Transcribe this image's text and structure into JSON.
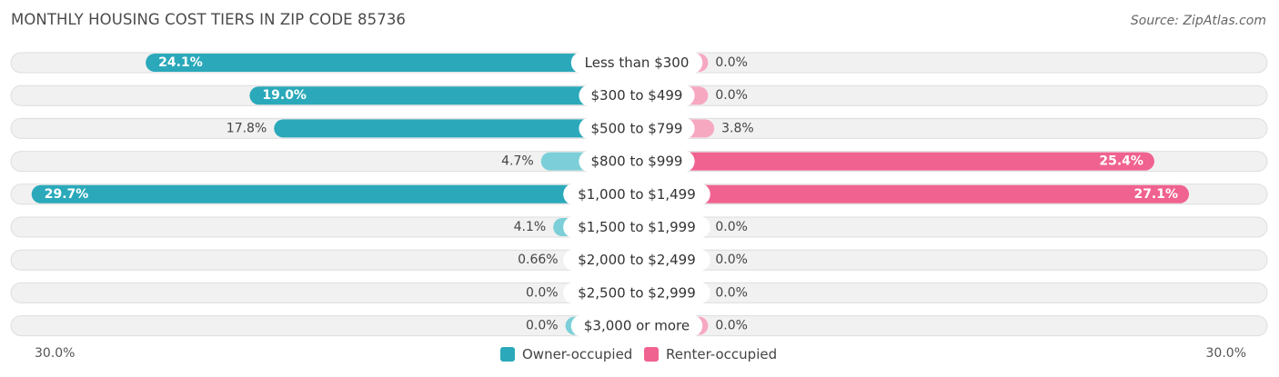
{
  "title": "MONTHLY HOUSING COST TIERS IN ZIP CODE 85736",
  "source": "Source: ZipAtlas.com",
  "axis": {
    "left_label": "30.0%",
    "right_label": "30.0%"
  },
  "legend": {
    "owner": {
      "label": "Owner-occupied",
      "color": "#2ba9ba"
    },
    "renter": {
      "label": "Renter-occupied",
      "color": "#f0628f"
    }
  },
  "chart_data": {
    "type": "bar",
    "orientation": "diverging-horizontal",
    "max": 30.0,
    "categories": [
      "Less than $300",
      "$300 to $499",
      "$500 to $799",
      "$800 to $999",
      "$1,000 to $1,499",
      "$1,500 to $1,999",
      "$2,000 to $2,499",
      "$2,500 to $2,999",
      "$3,000 or more"
    ],
    "series": [
      {
        "name": "Owner-occupied",
        "values": [
          24.1,
          19.0,
          17.8,
          4.7,
          29.7,
          4.1,
          0.66,
          0.0,
          0.0
        ],
        "labels": [
          "24.1%",
          "19.0%",
          "17.8%",
          "4.7%",
          "29.7%",
          "4.1%",
          "0.66%",
          "0.0%",
          "0.0%"
        ]
      },
      {
        "name": "Renter-occupied",
        "values": [
          0.0,
          0.0,
          3.8,
          25.4,
          27.1,
          0.0,
          0.0,
          0.0,
          0.0
        ],
        "labels": [
          "0.0%",
          "0.0%",
          "3.8%",
          "25.4%",
          "27.1%",
          "0.0%",
          "0.0%",
          "0.0%",
          "0.0%"
        ]
      }
    ]
  }
}
